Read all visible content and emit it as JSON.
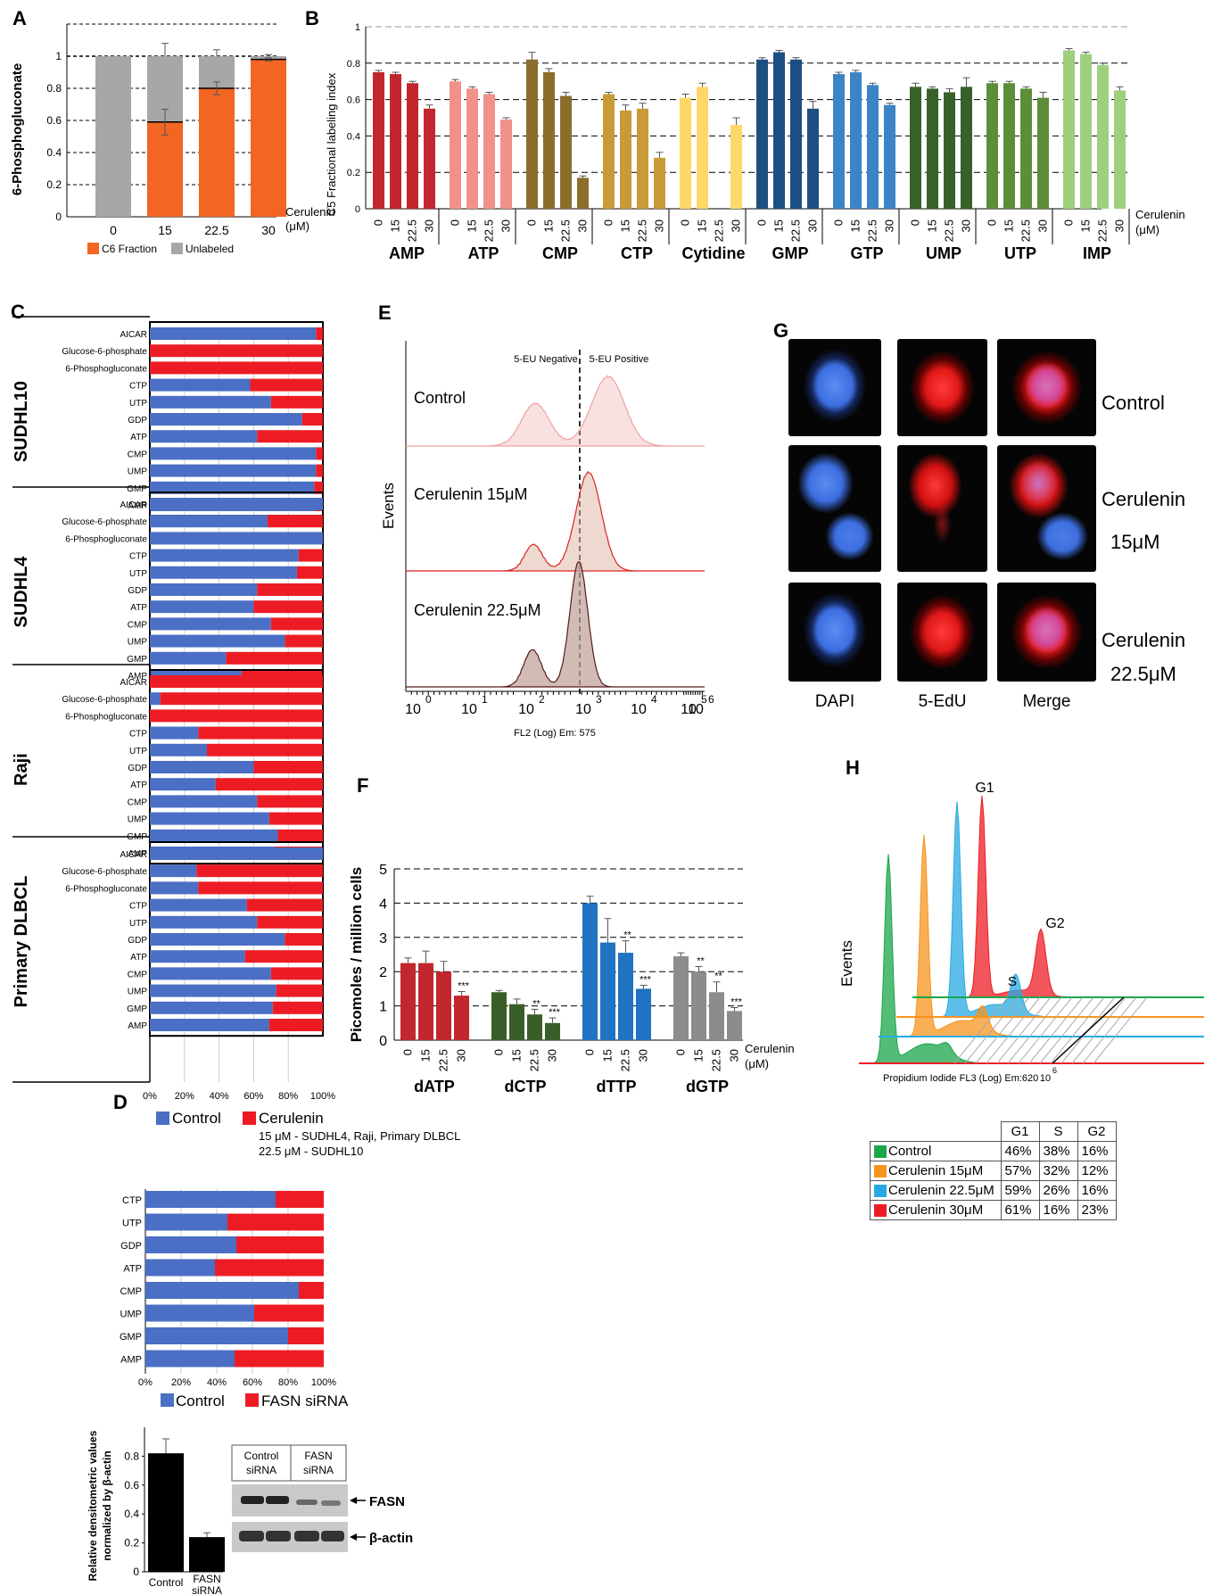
{
  "panels": {
    "A": "A",
    "B": "B",
    "C": "C",
    "D": "D",
    "E": "E",
    "F": "F",
    "G": "G",
    "H": "H"
  },
  "colors": {
    "orange": "#f26522",
    "gray": "#a7a7a7",
    "blue": "#4a6fc4",
    "red": "#ed1c24",
    "black": "#000000"
  },
  "chart_data": [
    {
      "id": "A",
      "type": "bar",
      "stacked": true,
      "ylabel": "6-Phosphogluconate",
      "xlabel": "Cerulenin (μM)",
      "xlabel_line1": "Cerulenin",
      "xlabel_line2": "(μM)",
      "categories": [
        "0",
        "15",
        "22.5",
        "30"
      ],
      "yticks": [
        "0",
        "0.2",
        "0.4",
        "0.6",
        "0.8",
        "1"
      ],
      "ylim": [
        0,
        1.2
      ],
      "series": [
        {
          "name": "C6 Fraction",
          "color": "#f26522",
          "values": [
            0,
            0.59,
            0.8,
            0.98
          ],
          "errors": [
            0,
            0.08,
            0.04,
            0.01
          ]
        },
        {
          "name": "Unlabeled",
          "color": "#a7a7a7",
          "values": [
            1,
            0.41,
            0.2,
            0.02
          ],
          "errors": [
            0,
            0.08,
            0.04,
            0.01
          ]
        }
      ],
      "legend": [
        "C6 Fraction",
        "Unlabeled"
      ]
    },
    {
      "id": "B",
      "type": "bar",
      "ylabel": "C5 Fractional labeling index",
      "xlabel": "Cerulenin (μM)",
      "xlabel_line1": "Cerulenin",
      "xlabel_line2": "(μM)",
      "yticks": [
        "0",
        "0.2",
        "0.4",
        "0.6",
        "0.8",
        "1"
      ],
      "ylim": [
        0,
        1
      ],
      "doses": [
        "0",
        "15",
        "22.5",
        "30"
      ],
      "groups": [
        {
          "name": "AMP",
          "color": "#c1272d",
          "values": [
            0.75,
            0.74,
            0.69,
            0.55
          ],
          "errors": [
            0.01,
            0.01,
            0.01,
            0.02
          ]
        },
        {
          "name": "ATP",
          "color": "#f0918a",
          "values": [
            0.7,
            0.66,
            0.63,
            0.49
          ],
          "errors": [
            0.01,
            0.01,
            0.01,
            0.01
          ]
        },
        {
          "name": "CMP",
          "color": "#8c6d2c",
          "values": [
            0.82,
            0.75,
            0.62,
            0.17
          ],
          "errors": [
            0.04,
            0.02,
            0.02,
            0.01
          ]
        },
        {
          "name": "CTP",
          "color": "#c89b36",
          "values": [
            0.63,
            0.54,
            0.55,
            0.28
          ],
          "errors": [
            0.01,
            0.03,
            0.03,
            0.03
          ]
        },
        {
          "name": "Cytidine",
          "color": "#fed769",
          "values": [
            0.61,
            0.67,
            null,
            0.46
          ],
          "errors": [
            0.02,
            0.02,
            0,
            0.04
          ]
        },
        {
          "name": "GMP",
          "color": "#1c4f82",
          "values": [
            0.82,
            0.86,
            0.82,
            0.55
          ],
          "errors": [
            0.01,
            0.01,
            0.01,
            0.04
          ]
        },
        {
          "name": "GTP",
          "color": "#3d84c6",
          "values": [
            0.74,
            0.75,
            0.68,
            0.57
          ],
          "errors": [
            0.01,
            0.01,
            0.01,
            0.01
          ]
        },
        {
          "name": "UMP",
          "color": "#376129",
          "values": [
            0.67,
            0.66,
            0.64,
            0.67
          ],
          "errors": [
            0.02,
            0.01,
            0.02,
            0.05
          ]
        },
        {
          "name": "UTP",
          "color": "#5c8e3a",
          "values": [
            0.69,
            0.69,
            0.66,
            0.61
          ],
          "errors": [
            0.01,
            0.01,
            0.01,
            0.03
          ]
        },
        {
          "name": "IMP",
          "color": "#9cd07e",
          "values": [
            0.87,
            0.85,
            0.79,
            0.65
          ],
          "errors": [
            0.01,
            0.01,
            0.01,
            0.02
          ]
        }
      ]
    },
    {
      "id": "C",
      "type": "bar",
      "orientation": "horizontal",
      "stacked": true,
      "xticks": [
        "0%",
        "20%",
        "40%",
        "60%",
        "80%",
        "100%"
      ],
      "legend": [
        "Control",
        "Cerulenin"
      ],
      "note_line1": "15 μM - SUDHL4, Raji, Primary DLBCL",
      "note_line2": "22.5 μM - SUDHL10",
      "groups": [
        {
          "name": "SUDHL10",
          "labels": [
            "AICAR",
            "Glucose-6-phosphate",
            "6-Phosphogluconate",
            "CTP",
            "UTP",
            "GDP",
            "ATP",
            "CMP",
            "UMP",
            "GMP",
            "AMP"
          ],
          "control": [
            0.96,
            0,
            0,
            0.58,
            0.7,
            0.88,
            0.62,
            0.96,
            0.96,
            0.95,
            0.95
          ]
        },
        {
          "name": "SUDHL4",
          "labels": [
            "AICAR",
            "Glucose-6-phosphate",
            "6-Phosphogluconate",
            "CTP",
            "UTP",
            "GDP",
            "ATP",
            "CMP",
            "UMP",
            "GMP",
            "AMP"
          ],
          "control": [
            1,
            0.68,
            1,
            0.86,
            0.85,
            0.62,
            0.6,
            0.7,
            0.78,
            0.44,
            0.53
          ]
        },
        {
          "name": "Raji",
          "labels": [
            "AICAR",
            "Glucose-6-phosphate",
            "6-Phosphogluconate",
            "CTP",
            "UTP",
            "GDP",
            "ATP",
            "CMP",
            "UMP",
            "GMP",
            "AMP"
          ],
          "control": [
            0,
            0.06,
            0,
            0.28,
            0.33,
            0.6,
            0.38,
            0.62,
            0.69,
            0.74,
            0.72
          ]
        },
        {
          "name": "Primary DLBCL",
          "labels": [
            "AICAR",
            "Glucose-6-phosphate",
            "6-Phosphogluconate",
            "CTP",
            "UTP",
            "GDP",
            "ATP",
            "CMP",
            "UMP",
            "GMP",
            "AMP"
          ],
          "control": [
            1,
            0.27,
            0.28,
            0.56,
            0.62,
            0.78,
            0.55,
            0.7,
            0.73,
            0.71,
            0.69
          ]
        }
      ]
    },
    {
      "id": "D",
      "type": "bar",
      "orientation": "horizontal",
      "stacked": true,
      "labels": [
        "CTP",
        "UTP",
        "GDP",
        "ATP",
        "CMP",
        "UMP",
        "GMP",
        "AMP"
      ],
      "control": [
        0.73,
        0.46,
        0.51,
        0.39,
        0.86,
        0.61,
        0.8,
        0.5
      ],
      "xticks": [
        "0%",
        "20%",
        "40%",
        "60%",
        "80%",
        "100%"
      ],
      "legend": [
        "Control",
        "FASN siRNA"
      ]
    },
    {
      "id": "D-densitometry",
      "type": "bar",
      "ylabel_line1": "Relative densitometric values",
      "ylabel_line2": "normalized by β-actin",
      "categories": [
        "Control",
        "FASN siRNA"
      ],
      "values": [
        0.82,
        0.24
      ],
      "errors": [
        0.1,
        0.03
      ],
      "yticks": [
        "0",
        "0.2",
        "0.4",
        "0.6",
        "0.8"
      ],
      "ylim": [
        0,
        1
      ]
    },
    {
      "id": "E",
      "type": "area",
      "ylabel": "Events",
      "xlabel": "FL2 (Log) Em: 575",
      "xtick_exponents": [
        "0",
        "1",
        "2",
        "3",
        "4",
        "5",
        "6"
      ],
      "gate_left": "5-EU Negative",
      "gate_right": "5-EU Positive",
      "series": [
        "Control",
        "Cerulenin 15μM",
        "Cerulenin 22.5μM"
      ]
    },
    {
      "id": "F",
      "type": "bar",
      "ylabel": "Picomoles / million cells",
      "xlabel": "Cerulenin (μM)",
      "xlabel_line1": "Cerulenin",
      "xlabel_line2": "(μM)",
      "yticks": [
        "0",
        "1",
        "2",
        "3",
        "4",
        "5"
      ],
      "ylim": [
        0,
        5
      ],
      "doses": [
        "0",
        "15",
        "22.5",
        "30"
      ],
      "groups": [
        {
          "name": "dATP",
          "color": "#c1272d",
          "values": [
            2.25,
            2.25,
            2.0,
            1.3
          ],
          "errors": [
            0.15,
            0.35,
            0.3,
            0.12
          ],
          "sig": [
            "",
            "",
            "",
            "***"
          ]
        },
        {
          "name": "dCTP",
          "color": "#3a5e28",
          "values": [
            1.4,
            1.05,
            0.75,
            0.5
          ],
          "errors": [
            0.05,
            0.15,
            0.15,
            0.15
          ],
          "sig": [
            "",
            "",
            "**",
            "***"
          ]
        },
        {
          "name": "dTTP",
          "color": "#1f73c0",
          "values": [
            4.0,
            2.85,
            2.55,
            1.5
          ],
          "errors": [
            0.2,
            0.7,
            0.35,
            0.1
          ],
          "sig": [
            "",
            "",
            "**",
            "***"
          ]
        },
        {
          "name": "dGTP",
          "color": "#8c8c8c",
          "values": [
            2.45,
            2.0,
            1.4,
            0.85
          ],
          "errors": [
            0.1,
            0.15,
            0.3,
            0.1
          ],
          "sig": [
            "",
            "**",
            "**",
            "***"
          ]
        }
      ]
    },
    {
      "id": "H",
      "type": "area",
      "ylabel": "Events",
      "xlabel": "Propidium Iodide FL3 (Log) Em:620",
      "xtick": "10",
      "xtick_exp": "6",
      "peak_labels": {
        "g1": "G1",
        "s": "S",
        "g2": "G2"
      },
      "table": {
        "headers": [
          "",
          "G1",
          "S",
          "G2"
        ],
        "rows": [
          {
            "name": "Control",
            "color": "#1aa64a",
            "g1": "46%",
            "s": "38%",
            "g2": "16%"
          },
          {
            "name": "Cerulenin 15μM",
            "color": "#f7941d",
            "g1": "57%",
            "s": "32%",
            "g2": "12%"
          },
          {
            "name": "Cerulenin 22.5μM",
            "color": "#27aae1",
            "g1": "59%",
            "s": "26%",
            "g2": "16%"
          },
          {
            "name": "Cerulenin 30μM",
            "color": "#ed1c24",
            "g1": "61%",
            "s": "16%",
            "g2": "23%"
          }
        ]
      }
    }
  ],
  "panelG": {
    "row_labels": [
      [
        "Control",
        ""
      ],
      [
        "Cerulenin",
        "15μM"
      ],
      [
        "Cerulenin",
        "22.5μM"
      ]
    ],
    "col_labels": [
      "DAPI",
      "5-EdU",
      "Merge"
    ]
  },
  "westernBlot": {
    "lane_label_1": "Control siRNA",
    "lane_label_2": "FASN siRNA",
    "band_1": "FASN",
    "band_2": "β-actin"
  }
}
